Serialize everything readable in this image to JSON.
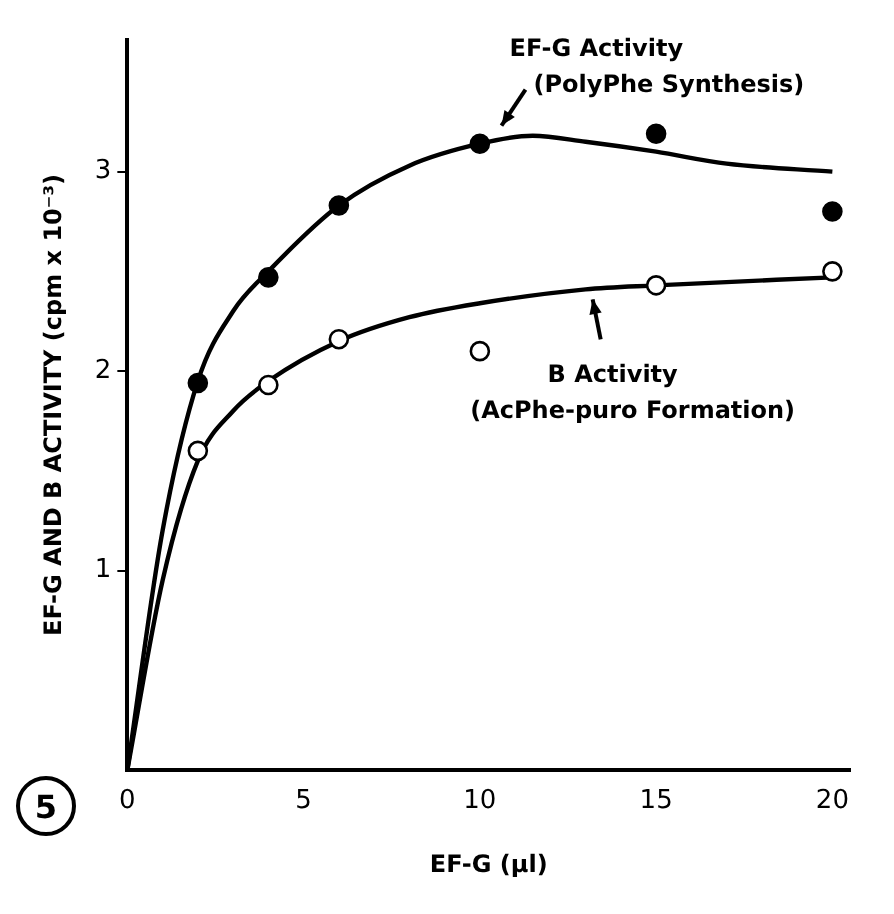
{
  "chart_data": {
    "type": "scatter",
    "xlabel": "EF-G (μl)",
    "ylabel": "EF-G AND B ACTIVITY (cpm x 10⁻³)",
    "xlim": [
      0,
      20.5
    ],
    "ylim": [
      0,
      3.66
    ],
    "xticks": [
      0,
      5,
      10,
      15,
      20
    ],
    "yticks": [
      1,
      2,
      3
    ],
    "grid": false,
    "legend": false,
    "series": [
      {
        "marker": "circle",
        "color": "#000000",
        "x": [
          2,
          4,
          6,
          10,
          15,
          20
        ],
        "values": [
          1.94,
          2.47,
          2.83,
          3.14,
          3.19,
          2.8
        ]
      },
      {
        "marker": "circle",
        "color": "#000000",
        "x": [
          2,
          4,
          6,
          10,
          15,
          20
        ],
        "values": [
          1.6,
          1.93,
          2.16,
          2.1,
          2.43,
          2.5
        ]
      },
      {
        "type": "line",
        "marker": "none",
        "color": "#000000",
        "x": [
          0,
          1,
          2,
          3,
          4,
          6,
          8,
          10,
          11.5,
          13,
          15,
          17,
          20
        ],
        "values": [
          0,
          1.2,
          1.95,
          2.3,
          2.5,
          2.83,
          3.03,
          3.14,
          3.18,
          3.15,
          3.1,
          3.04,
          3.0
        ]
      },
      {
        "type": "line",
        "marker": "none",
        "color": "#000000",
        "x": [
          0,
          1,
          2,
          3,
          4,
          6,
          8,
          10,
          13,
          15,
          20
        ],
        "values": [
          0,
          0.95,
          1.55,
          1.8,
          1.95,
          2.15,
          2.27,
          2.34,
          2.41,
          2.43,
          2.47
        ]
      }
    ],
    "annotations": [
      {
        "text": "EF-G Activity\n(PolyPhe Synthesis)",
        "x": 10.5,
        "y": 3.17
      },
      {
        "text": "B Activity\n(AcPhe-puro Formation)",
        "x": 13.2,
        "y": 2.42
      },
      "5"
    ]
  }
}
